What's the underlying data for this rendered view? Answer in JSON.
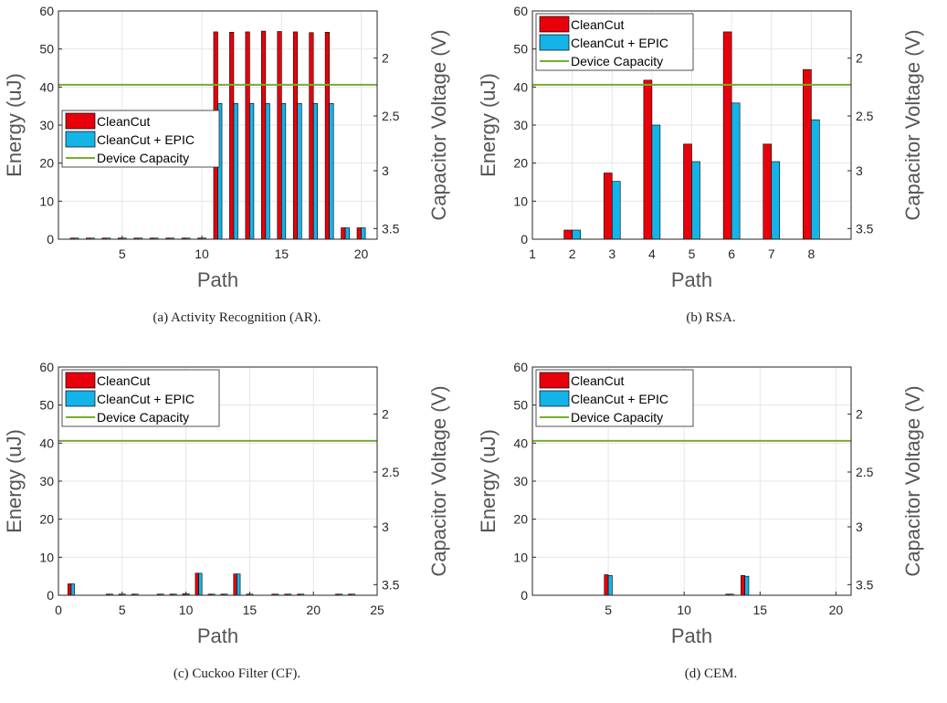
{
  "legend_labels": [
    "CleanCut",
    "CleanCut + EPIC",
    "Device Capacity"
  ],
  "colors": {
    "cleancut": "#e8000b",
    "epic": "#14b4e9",
    "capacity": "#77ac30",
    "grid": "#e6e6e6",
    "axis": "#262626"
  },
  "chart_data": [
    {
      "type": "bar",
      "caption": "(a)  Activity Recognition (AR).",
      "xlabel": "Path",
      "ylabel": "Energy (uJ)",
      "ylabel_right": "Capacitor Voltage (V)",
      "xlim": [
        1,
        21
      ],
      "ylim": [
        0,
        60
      ],
      "xticks": [
        5,
        10,
        15,
        20
      ],
      "yticks": [
        0,
        10,
        20,
        30,
        40,
        50,
        60
      ],
      "right_ticks": [
        {
          "label": "2",
          "energy": 47.6
        },
        {
          "label": "2.5",
          "energy": 32.4
        },
        {
          "label": "3",
          "energy": 18.0
        },
        {
          "label": "3.5",
          "energy": 2.8
        }
      ],
      "legend_position": "middle-left",
      "device_capacity": 40.6,
      "x": [
        2,
        3,
        4,
        5,
        6,
        7,
        8,
        9,
        10,
        11,
        12,
        13,
        14,
        15,
        16,
        17,
        18,
        19,
        20
      ],
      "series": [
        {
          "name": "CleanCut",
          "values": [
            0.3,
            0.3,
            0.3,
            0.3,
            0.3,
            0.3,
            0.3,
            0.3,
            0.3,
            54.5,
            54.4,
            54.5,
            54.7,
            54.6,
            54.5,
            54.3,
            54.4,
            3.0,
            3.0
          ]
        },
        {
          "name": "CleanCut + EPIC",
          "values": [
            0.3,
            0.3,
            0.3,
            0.3,
            0.3,
            0.3,
            0.3,
            0.3,
            0.3,
            35.7,
            35.7,
            35.7,
            35.7,
            35.7,
            35.7,
            35.7,
            35.7,
            3.0,
            3.0
          ]
        }
      ]
    },
    {
      "type": "bar",
      "caption": "(b)  RSA.",
      "xlabel": "Path",
      "ylabel": "Energy (uJ)",
      "ylabel_right": "Capacitor Voltage (V)",
      "xlim": [
        1,
        9
      ],
      "ylim": [
        0,
        60
      ],
      "xticks": [
        1,
        2,
        3,
        4,
        5,
        6,
        7,
        8
      ],
      "yticks": [
        0,
        10,
        20,
        30,
        40,
        50,
        60
      ],
      "right_ticks": [
        {
          "label": "2",
          "energy": 47.6
        },
        {
          "label": "2.5",
          "energy": 32.4
        },
        {
          "label": "3",
          "energy": 18.0
        },
        {
          "label": "3.5",
          "energy": 2.8
        }
      ],
      "legend_position": "top-left",
      "device_capacity": 40.6,
      "x": [
        2,
        3,
        4,
        5,
        6,
        7,
        8
      ],
      "series": [
        {
          "name": "CleanCut",
          "values": [
            2.4,
            17.4,
            41.8,
            25.0,
            54.5,
            25.0,
            44.6
          ]
        },
        {
          "name": "CleanCut + EPIC",
          "values": [
            2.4,
            15.2,
            30.0,
            20.4,
            35.8,
            20.4,
            31.4
          ]
        }
      ]
    },
    {
      "type": "bar",
      "caption": "(c)  Cuckoo Filter (CF).",
      "xlabel": "Path",
      "ylabel": "Energy (uJ)",
      "ylabel_right": "Capacitor Voltage (V)",
      "xlim": [
        0,
        25
      ],
      "ylim": [
        0,
        60
      ],
      "xticks": [
        0,
        5,
        10,
        15,
        20,
        25
      ],
      "yticks": [
        0,
        10,
        20,
        30,
        40,
        50,
        60
      ],
      "right_ticks": [
        {
          "label": "2",
          "energy": 47.6
        },
        {
          "label": "2.5",
          "energy": 32.4
        },
        {
          "label": "3",
          "energy": 18.0
        },
        {
          "label": "3.5",
          "energy": 2.8
        }
      ],
      "legend_position": "top-left",
      "device_capacity": 40.6,
      "x": [
        1,
        4,
        5,
        6,
        8,
        9,
        10,
        11,
        12,
        13,
        14,
        15,
        17,
        18,
        19,
        22,
        23
      ],
      "series": [
        {
          "name": "CleanCut",
          "values": [
            3.0,
            0.3,
            0.3,
            0.3,
            0.3,
            0.3,
            0.4,
            5.8,
            0.3,
            0.3,
            5.6,
            0.3,
            0.3,
            0.3,
            0.3,
            0.3,
            0.3
          ]
        },
        {
          "name": "CleanCut + EPIC",
          "values": [
            3.0,
            0.3,
            0.3,
            0.3,
            0.3,
            0.3,
            0.4,
            5.8,
            0.3,
            0.3,
            5.6,
            0.3,
            0.3,
            0.3,
            0.3,
            0.3,
            0.3
          ]
        }
      ]
    },
    {
      "type": "bar",
      "caption": "(d)  CEM.",
      "xlabel": "Path",
      "ylabel": "Energy (uJ)",
      "ylabel_right": "Capacitor Voltage (V)",
      "xlim": [
        0,
        21
      ],
      "ylim": [
        0,
        60
      ],
      "xticks": [
        5,
        10,
        15,
        20
      ],
      "yticks": [
        0,
        10,
        20,
        30,
        40,
        50,
        60
      ],
      "right_ticks": [
        {
          "label": "2",
          "energy": 47.6
        },
        {
          "label": "2.5",
          "energy": 32.4
        },
        {
          "label": "3",
          "energy": 18.0
        },
        {
          "label": "3.5",
          "energy": 2.8
        }
      ],
      "legend_position": "top-left",
      "device_capacity": 40.6,
      "x": [
        5,
        13,
        14
      ],
      "series": [
        {
          "name": "CleanCut",
          "values": [
            5.4,
            0.3,
            5.2
          ]
        },
        {
          "name": "CleanCut + EPIC",
          "values": [
            5.2,
            0.3,
            5.0
          ]
        }
      ]
    }
  ]
}
